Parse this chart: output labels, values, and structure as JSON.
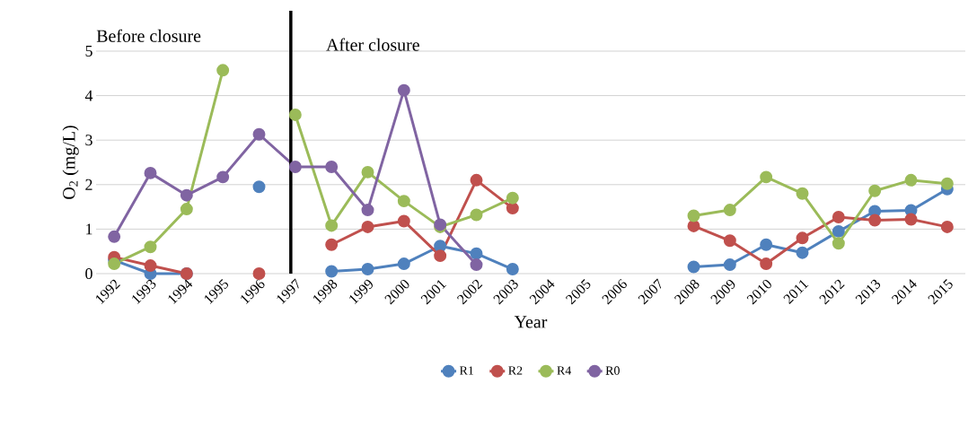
{
  "chart_data": {
    "type": "line",
    "xlabel": "Year",
    "ylabel": "O$_{2}$ (mg/L)",
    "categories": [
      "1992",
      "1993",
      "1994",
      "1995",
      "1996",
      "1997",
      "1998",
      "1999",
      "2000",
      "2001",
      "2002",
      "2003",
      "2004",
      "2005",
      "2006",
      "2007",
      "2008",
      "2009",
      "2010",
      "2011",
      "2012",
      "2013",
      "2014",
      "2015"
    ],
    "series": [
      {
        "name": "R1",
        "color": "#4f81bd",
        "values": [
          0.3,
          0,
          0,
          null,
          1.95,
          null,
          0.05,
          0.1,
          0.22,
          0.62,
          0.45,
          0.1,
          null,
          null,
          null,
          null,
          0.15,
          0.2,
          0.65,
          0.47,
          0.95,
          1.4,
          1.42,
          1.9
        ]
      },
      {
        "name": "R2",
        "color": "#c0504d",
        "values": [
          0.37,
          0.18,
          0,
          null,
          0,
          null,
          0.65,
          1.05,
          1.18,
          0.4,
          2.1,
          1.47,
          null,
          null,
          null,
          null,
          1.07,
          0.74,
          0.22,
          0.8,
          1.27,
          1.2,
          1.22,
          1.05
        ]
      },
      {
        "name": "R4",
        "color": "#9bbb59",
        "values": [
          0.22,
          0.6,
          1.45,
          4.57,
          null,
          3.57,
          1.08,
          2.28,
          1.63,
          1.05,
          1.32,
          1.7,
          null,
          null,
          null,
          null,
          1.3,
          1.43,
          2.17,
          1.8,
          0.68,
          1.86,
          2.1,
          2.02
        ]
      },
      {
        "name": "R0",
        "color": "#8064a2",
        "values": [
          0.83,
          2.26,
          1.76,
          2.17,
          3.13,
          2.4,
          2.4,
          1.43,
          4.12,
          1.1,
          0.2,
          null,
          null,
          null,
          null,
          null,
          null,
          null,
          null,
          null,
          null,
          null,
          null,
          null
        ]
      }
    ],
    "ylim": [
      0,
      5
    ],
    "yticks": [
      0,
      1,
      2,
      3,
      4,
      5
    ],
    "grid": "y",
    "legend": "bottom",
    "marker": "circle",
    "line_style": "solid",
    "ref_lines": [
      {
        "axis": "x",
        "value": "1997",
        "color": "#000000"
      }
    ],
    "annotations": [
      "Before closure",
      "After closure"
    ]
  }
}
